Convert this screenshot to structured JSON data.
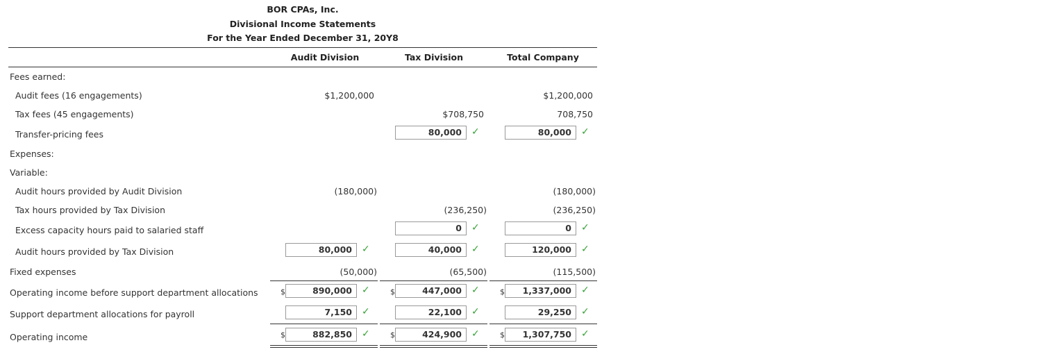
{
  "header": {
    "company": "BOR CPAs, Inc.",
    "statement": "Divisional Income Statements",
    "period": "For the Year Ended December 31, 20Y8"
  },
  "columns": [
    "Audit Division",
    "Tax Division",
    "Total Company"
  ],
  "currency_symbol": "$",
  "rows": {
    "fees_earned": "Fees earned:",
    "audit_fees": {
      "label": "Audit fees (16 engagements)",
      "audit": "$1,200,000",
      "total": "$1,200,000"
    },
    "tax_fees": {
      "label": "Tax fees (45 engagements)",
      "tax": "$708,750",
      "total": "708,750"
    },
    "transfer_fees": {
      "label": "Transfer-pricing fees",
      "tax": "80,000",
      "total": "80,000"
    },
    "expenses": "Expenses:",
    "variable": "Variable:",
    "audit_hours_audit": {
      "label": "Audit hours provided by Audit Division",
      "audit": "(180,000)",
      "total": "(180,000)"
    },
    "tax_hours_tax": {
      "label": "Tax hours provided by Tax Division",
      "tax": "(236,250)",
      "total": "(236,250)"
    },
    "excess_capacity": {
      "label": "Excess capacity hours paid to salaried staff",
      "tax": "0",
      "total": "0"
    },
    "audit_hours_tax": {
      "label": "Audit hours provided by Tax Division",
      "audit": "80,000",
      "tax": "40,000",
      "total": "120,000"
    },
    "fixed": {
      "label": "Fixed expenses",
      "audit": "(50,000)",
      "tax": "(65,500)",
      "total": "(115,500)"
    },
    "op_before": {
      "label": "Operating income before support department allocations",
      "audit": "890,000",
      "tax": "447,000",
      "total": "1,337,000"
    },
    "support_alloc": {
      "label": "Support department allocations for payroll",
      "audit": "7,150",
      "tax": "22,100",
      "total": "29,250"
    },
    "op_income": {
      "label": "Operating income",
      "audit": "882,850",
      "tax": "424,900",
      "total": "1,307,750"
    }
  },
  "check_glyph": "✓"
}
